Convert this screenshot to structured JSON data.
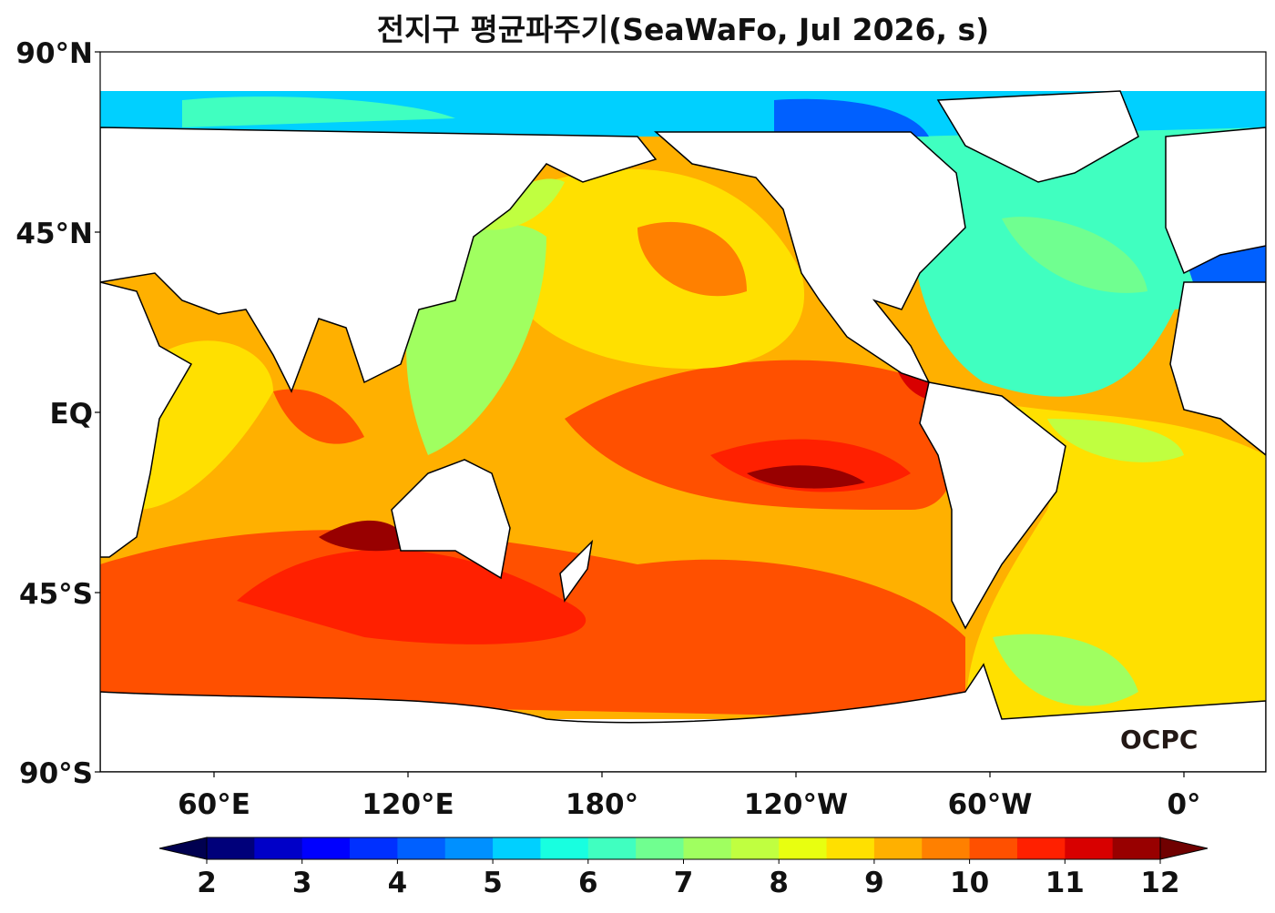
{
  "title": "전지구 평균파주기(SeaWaFo, Jul 2026, s)",
  "y_axis_labels": [
    "90°N",
    "45°N",
    "EQ",
    "45°S",
    "90°S"
  ],
  "x_axis_labels": [
    "60°E",
    "120°E",
    "180°",
    "120°W",
    "60°W",
    "0°"
  ],
  "colorbar": {
    "min": 2,
    "max": 12,
    "step": 0.5,
    "tick_labels": [
      "2",
      "3",
      "4",
      "5",
      "6",
      "7",
      "8",
      "9",
      "10",
      "11",
      "12"
    ],
    "colors": [
      "#00007a",
      "#0000c8",
      "#0000ff",
      "#0030ff",
      "#0060ff",
      "#0090ff",
      "#00d0ff",
      "#18ffe0",
      "#40ffc0",
      "#70ff90",
      "#a0ff60",
      "#c0ff40",
      "#e8ff10",
      "#ffe000",
      "#ffb000",
      "#ff8000",
      "#ff5000",
      "#ff2000",
      "#d80000",
      "#980000"
    ],
    "under_color": "#000050",
    "over_color": "#700000"
  },
  "logo": "OCPC"
}
